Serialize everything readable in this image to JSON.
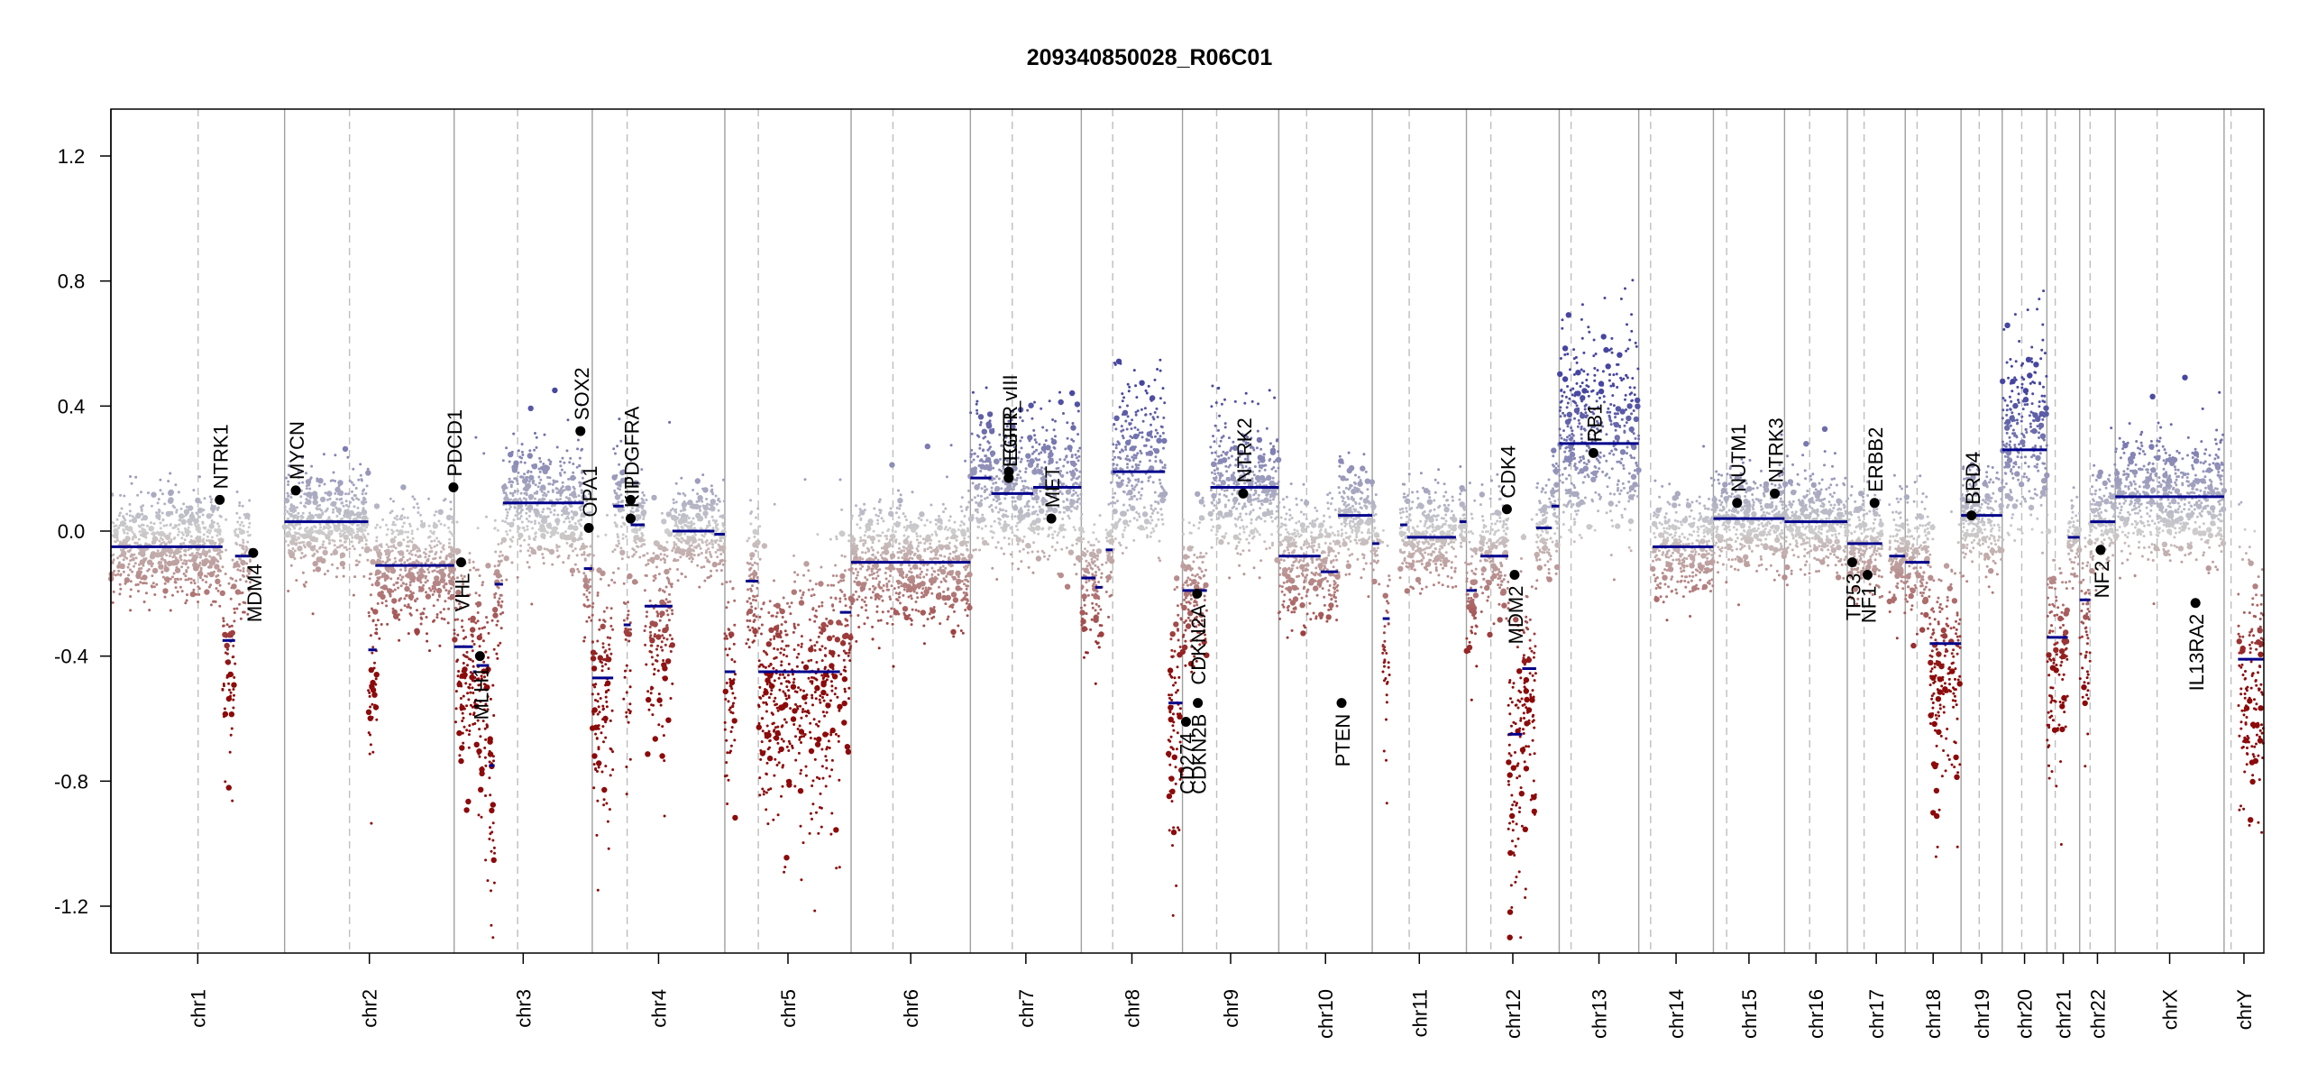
{
  "chart_data": {
    "type": "scatter",
    "title": "209340850028_R06C01",
    "xlabel": "",
    "ylabel": "",
    "ylim": [
      -1.35,
      1.35
    ],
    "yticks": [
      -1.2,
      -0.8,
      -0.4,
      0.0,
      0.4,
      0.8,
      1.2
    ],
    "ytick_labels": [
      "-1.2",
      "-0.8",
      "-0.4",
      "0.0",
      "0.4",
      "0.8",
      "1.2"
    ],
    "grid": false,
    "chromosomes": [
      {
        "name": "chr1",
        "length": 249.0,
        "centromere": 125.0
      },
      {
        "name": "chr2",
        "length": 243.0,
        "centromere": 93.0
      },
      {
        "name": "chr3",
        "length": 198.0,
        "centromere": 91.0
      },
      {
        "name": "chr4",
        "length": 190.0,
        "centromere": 50.0
      },
      {
        "name": "chr5",
        "length": 181.0,
        "centromere": 48.0
      },
      {
        "name": "chr6",
        "length": 171.0,
        "centromere": 60.0
      },
      {
        "name": "chr7",
        "length": 159.0,
        "centromere": 60.0
      },
      {
        "name": "chr8",
        "length": 145.0,
        "centromere": 45.0
      },
      {
        "name": "chr9",
        "length": 138.0,
        "centromere": 49.0
      },
      {
        "name": "chr10",
        "length": 134.0,
        "centromere": 40.0
      },
      {
        "name": "chr11",
        "length": 135.0,
        "centromere": 53.0
      },
      {
        "name": "chr12",
        "length": 133.0,
        "centromere": 35.0
      },
      {
        "name": "chr13",
        "length": 114.0,
        "centromere": 17.0
      },
      {
        "name": "chr14",
        "length": 107.0,
        "centromere": 17.0
      },
      {
        "name": "chr15",
        "length": 102.0,
        "centromere": 19.0
      },
      {
        "name": "chr16",
        "length": 90.0,
        "centromere": 36.0
      },
      {
        "name": "chr17",
        "length": 83.0,
        "centromere": 24.0
      },
      {
        "name": "chr18",
        "length": 80.0,
        "centromere": 17.0
      },
      {
        "name": "chr19",
        "length": 59.0,
        "centromere": 26.0
      },
      {
        "name": "chr20",
        "length": 64.0,
        "centromere": 28.0
      },
      {
        "name": "chr21",
        "length": 47.0,
        "centromere": 12.0
      },
      {
        "name": "chr22",
        "length": 51.0,
        "centromere": 15.0
      },
      {
        "name": "chrX",
        "length": 156.0,
        "centromere": 60.0
      },
      {
        "name": "chrY",
        "length": 57.0,
        "centromere": 10.0
      }
    ],
    "segments": [
      {
        "chr": "chr1",
        "start": 0,
        "end": 160,
        "value": -0.05
      },
      {
        "chr": "chr1",
        "start": 160,
        "end": 178,
        "value": -0.35
      },
      {
        "chr": "chr1",
        "start": 178,
        "end": 186,
        "value": -0.08
      },
      {
        "chr": "chr1",
        "start": 186,
        "end": 200,
        "value": -0.08
      },
      {
        "chr": "chr2",
        "start": 0,
        "end": 120,
        "value": 0.03
      },
      {
        "chr": "chr2",
        "start": 120,
        "end": 132,
        "value": -0.38
      },
      {
        "chr": "chr2",
        "start": 130,
        "end": 243,
        "value": -0.11
      },
      {
        "chr": "chr3",
        "start": 0,
        "end": 27,
        "value": -0.37
      },
      {
        "chr": "chr3",
        "start": 27,
        "end": 32,
        "value": -0.45
      },
      {
        "chr": "chr3",
        "start": 32,
        "end": 50,
        "value": -0.43
      },
      {
        "chr": "chr3",
        "start": 50,
        "end": 58,
        "value": -0.75
      },
      {
        "chr": "chr3",
        "start": 58,
        "end": 70,
        "value": -0.17
      },
      {
        "chr": "chr3",
        "start": 70,
        "end": 186,
        "value": 0.09
      },
      {
        "chr": "chr3",
        "start": 186,
        "end": 198,
        "value": -0.12
      },
      {
        "chr": "chr4",
        "start": 0,
        "end": 30,
        "value": -0.47
      },
      {
        "chr": "chr4",
        "start": 30,
        "end": 45,
        "value": 0.08
      },
      {
        "chr": "chr4",
        "start": 45,
        "end": 55,
        "value": -0.3
      },
      {
        "chr": "chr4",
        "start": 55,
        "end": 75,
        "value": 0.02
      },
      {
        "chr": "chr4",
        "start": 75,
        "end": 115,
        "value": -0.24
      },
      {
        "chr": "chr4",
        "start": 115,
        "end": 175,
        "value": 0.0
      },
      {
        "chr": "chr4",
        "start": 175,
        "end": 190,
        "value": -0.01
      },
      {
        "chr": "chr5",
        "start": 0,
        "end": 15,
        "value": -0.45
      },
      {
        "chr": "chr5",
        "start": 30,
        "end": 48,
        "value": -0.16
      },
      {
        "chr": "chr5",
        "start": 48,
        "end": 165,
        "value": -0.45
      },
      {
        "chr": "chr5",
        "start": 165,
        "end": 181,
        "value": -0.26
      },
      {
        "chr": "chr6",
        "start": 0,
        "end": 171,
        "value": -0.1
      },
      {
        "chr": "chr7",
        "start": 0,
        "end": 30,
        "value": 0.17
      },
      {
        "chr": "chr7",
        "start": 30,
        "end": 90,
        "value": 0.12
      },
      {
        "chr": "chr7",
        "start": 90,
        "end": 159,
        "value": 0.14
      },
      {
        "chr": "chr8",
        "start": 0,
        "end": 20,
        "value": -0.15
      },
      {
        "chr": "chr8",
        "start": 20,
        "end": 30,
        "value": -0.18
      },
      {
        "chr": "chr8",
        "start": 35,
        "end": 45,
        "value": -0.06
      },
      {
        "chr": "chr8",
        "start": 45,
        "end": 120,
        "value": 0.19
      },
      {
        "chr": "chr8",
        "start": 125,
        "end": 145,
        "value": -0.55
      },
      {
        "chr": "chr9",
        "start": 0,
        "end": 35,
        "value": -0.19
      },
      {
        "chr": "chr9",
        "start": 40,
        "end": 138,
        "value": 0.14
      },
      {
        "chr": "chr10",
        "start": 0,
        "end": 60,
        "value": -0.08
      },
      {
        "chr": "chr10",
        "start": 60,
        "end": 85,
        "value": -0.13
      },
      {
        "chr": "chr10",
        "start": 85,
        "end": 134,
        "value": 0.05
      },
      {
        "chr": "chr11",
        "start": 0,
        "end": 10,
        "value": -0.04
      },
      {
        "chr": "chr11",
        "start": 15,
        "end": 25,
        "value": -0.28
      },
      {
        "chr": "chr11",
        "start": 40,
        "end": 50,
        "value": 0.02
      },
      {
        "chr": "chr11",
        "start": 50,
        "end": 120,
        "value": -0.02
      },
      {
        "chr": "chr11",
        "start": 125,
        "end": 135,
        "value": 0.03
      },
      {
        "chr": "chr12",
        "start": 0,
        "end": 15,
        "value": -0.19
      },
      {
        "chr": "chr12",
        "start": 20,
        "end": 60,
        "value": -0.08
      },
      {
        "chr": "chr12",
        "start": 60,
        "end": 80,
        "value": -0.65
      },
      {
        "chr": "chr12",
        "start": 80,
        "end": 100,
        "value": -0.44
      },
      {
        "chr": "chr12",
        "start": 100,
        "end": 122,
        "value": 0.01
      },
      {
        "chr": "chr12",
        "start": 122,
        "end": 133,
        "value": 0.08
      },
      {
        "chr": "chr13",
        "start": 0,
        "end": 114,
        "value": 0.28
      },
      {
        "chr": "chr14",
        "start": 20,
        "end": 107,
        "value": -0.05
      },
      {
        "chr": "chr15",
        "start": 0,
        "end": 102,
        "value": 0.04
      },
      {
        "chr": "chr16",
        "start": 0,
        "end": 90,
        "value": 0.03
      },
      {
        "chr": "chr17",
        "start": 0,
        "end": 50,
        "value": -0.04
      },
      {
        "chr": "chr17",
        "start": 60,
        "end": 83,
        "value": -0.08
      },
      {
        "chr": "chr18",
        "start": 0,
        "end": 35,
        "value": -0.1
      },
      {
        "chr": "chr18",
        "start": 35,
        "end": 80,
        "value": -0.36
      },
      {
        "chr": "chr19",
        "start": 0,
        "end": 59,
        "value": 0.05
      },
      {
        "chr": "chr20",
        "start": 0,
        "end": 64,
        "value": 0.26
      },
      {
        "chr": "chr21",
        "start": 0,
        "end": 30,
        "value": -0.34
      },
      {
        "chr": "chr21",
        "start": 30,
        "end": 47,
        "value": -0.02
      },
      {
        "chr": "chr22",
        "start": 0,
        "end": 15,
        "value": -0.22
      },
      {
        "chr": "chr22",
        "start": 15,
        "end": 51,
        "value": 0.03
      },
      {
        "chr": "chrX",
        "start": 0,
        "end": 156,
        "value": 0.11
      },
      {
        "chr": "chrY",
        "start": 20,
        "end": 57,
        "value": -0.41
      }
    ],
    "genes": [
      {
        "name": "NTRK1",
        "chr": "chr1",
        "pos": 156,
        "value": 0.1,
        "label_side": "above"
      },
      {
        "name": "MDM4",
        "chr": "chr1",
        "pos": 204,
        "value": -0.07,
        "label_side": "below"
      },
      {
        "name": "MYCN",
        "chr": "chr2",
        "pos": 16,
        "value": 0.13,
        "label_side": "above"
      },
      {
        "name": "PDCD1",
        "chr": "chr2",
        "pos": 242,
        "value": 0.14,
        "label_side": "above"
      },
      {
        "name": "VHL",
        "chr": "chr3",
        "pos": 10,
        "value": -0.1,
        "label_side": "below"
      },
      {
        "name": "MLH1",
        "chr": "chr3",
        "pos": 37,
        "value": -0.4,
        "label_side": "below"
      },
      {
        "name": "SOX2",
        "chr": "chr3",
        "pos": 181,
        "value": 0.32,
        "label_side": "above"
      },
      {
        "name": "OPA1",
        "chr": "chr3",
        "pos": 193,
        "value": 0.01,
        "label_side": "above"
      },
      {
        "name": "KIT",
        "chr": "chr4",
        "pos": 55,
        "value": 0.04,
        "label_side": "above"
      },
      {
        "name": "PDGFRA",
        "chr": "chr4",
        "pos": 55,
        "value": 0.1,
        "label_side": "above"
      },
      {
        "name": "EGFR",
        "chr": "chr7",
        "pos": 55,
        "value": 0.19,
        "label_side": "above"
      },
      {
        "name": "EGFR_vIII",
        "chr": "chr7",
        "pos": 55,
        "value": 0.17,
        "label_side": "above"
      },
      {
        "name": "MET",
        "chr": "chr7",
        "pos": 116,
        "value": 0.04,
        "label_side": "above"
      },
      {
        "name": "CD274",
        "chr": "chr9",
        "pos": 5,
        "value": -0.61,
        "label_side": "below"
      },
      {
        "name": "CDKN2A",
        "chr": "chr9",
        "pos": 21,
        "value": -0.2,
        "label_side": "below"
      },
      {
        "name": "CDKN2B",
        "chr": "chr9",
        "pos": 22,
        "value": -0.55,
        "label_side": "below"
      },
      {
        "name": "NTRK2",
        "chr": "chr9",
        "pos": 87,
        "value": 0.12,
        "label_side": "above"
      },
      {
        "name": "PTEN",
        "chr": "chr10",
        "pos": 90,
        "value": -0.55,
        "label_side": "below"
      },
      {
        "name": "CDK4",
        "chr": "chr12",
        "pos": 58,
        "value": 0.07,
        "label_side": "above"
      },
      {
        "name": "MDM2",
        "chr": "chr12",
        "pos": 69,
        "value": -0.14,
        "label_side": "below"
      },
      {
        "name": "RB1",
        "chr": "chr13",
        "pos": 49,
        "value": 0.25,
        "label_side": "above"
      },
      {
        "name": "NUTM1",
        "chr": "chr15",
        "pos": 34,
        "value": 0.09,
        "label_side": "above"
      },
      {
        "name": "NTRK3",
        "chr": "chr15",
        "pos": 88,
        "value": 0.12,
        "label_side": "above"
      },
      {
        "name": "TP53",
        "chr": "chr17",
        "pos": 7,
        "value": -0.1,
        "label_side": "below"
      },
      {
        "name": "NF1",
        "chr": "chr17",
        "pos": 29,
        "value": -0.14,
        "label_side": "below"
      },
      {
        "name": "ERBB2",
        "chr": "chr17",
        "pos": 39,
        "value": 0.09,
        "label_side": "above"
      },
      {
        "name": "BRD4",
        "chr": "chr19",
        "pos": 15,
        "value": 0.05,
        "label_side": "above"
      },
      {
        "name": "NF2",
        "chr": "chr22",
        "pos": 30,
        "value": -0.06,
        "label_side": "below"
      },
      {
        "name": "IL13RA2",
        "chr": "chrX",
        "pos": 115,
        "value": -0.23,
        "label_side": "below"
      }
    ],
    "colors": {
      "gain": "#3B3B9E",
      "loss": "#8B0000",
      "neutral": "#C8C8C8",
      "segment": "#00008B",
      "gene_point": "#000000",
      "chrom_border": "#A0A0A0",
      "centromere": "#BEBEBE"
    }
  }
}
